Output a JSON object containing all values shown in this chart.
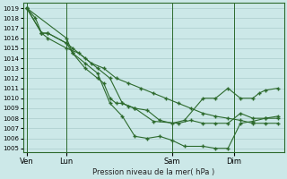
{
  "bg_color": "#cce8e8",
  "grid_color": "#aacccc",
  "line_color": "#2d6a2d",
  "title": "Pression niveau de la mer( hPa )",
  "yticks": [
    1005,
    1006,
    1007,
    1008,
    1009,
    1010,
    1011,
    1012,
    1013,
    1014,
    1015,
    1016,
    1017,
    1018,
    1019
  ],
  "ylim": [
    1004.6,
    1019.5
  ],
  "xlim": [
    0,
    21
  ],
  "xtick_positions": [
    0.3,
    3.5,
    12.0,
    17.0
  ],
  "xtick_labels": [
    "Ven",
    "Lun",
    "Sam",
    "Dim"
  ],
  "xvline_positions": [
    0.3,
    3.5,
    12.0,
    17.0
  ],
  "series1_x": [
    0.3,
    1.0,
    1.5,
    2.0,
    3.5,
    4.5,
    5.5,
    6.5,
    7.5,
    8.5,
    9.5,
    10.5,
    11.5,
    12.5,
    13.5,
    14.5,
    15.5,
    16.5,
    17.5,
    18.5,
    19.5,
    20.5
  ],
  "series1_y": [
    1019.0,
    1018.0,
    1016.5,
    1016.0,
    1015.0,
    1014.5,
    1013.5,
    1013.0,
    1012.0,
    1011.5,
    1011.0,
    1010.5,
    1010.0,
    1009.5,
    1009.0,
    1008.5,
    1008.2,
    1008.0,
    1007.8,
    1007.5,
    1007.5,
    1007.5
  ],
  "series2_x": [
    0.3,
    1.5,
    2.0,
    3.5,
    4.0,
    5.0,
    6.0,
    7.0,
    8.0,
    9.0,
    10.5,
    12.5,
    13.5,
    14.5,
    15.5,
    16.5,
    17.5,
    18.5,
    19.5,
    20.5
  ],
  "series2_y": [
    1019.0,
    1016.5,
    1016.5,
    1015.5,
    1015.0,
    1014.0,
    1013.0,
    1012.0,
    1009.5,
    1009.0,
    1007.7,
    1007.5,
    1007.8,
    1007.5,
    1007.5,
    1007.5,
    1008.5,
    1008.0,
    1008.0,
    1008.2
  ],
  "series3_x": [
    0.3,
    1.5,
    2.0,
    3.5,
    4.0,
    5.0,
    6.0,
    7.0,
    8.0,
    9.0,
    10.0,
    11.0,
    12.0,
    13.0,
    14.5,
    15.5,
    16.5,
    17.5,
    18.5,
    19.5,
    20.5
  ],
  "series3_y": [
    1019.0,
    1016.5,
    1016.5,
    1015.5,
    1014.5,
    1013.5,
    1012.5,
    1009.5,
    1008.2,
    1006.2,
    1006.0,
    1006.2,
    1005.8,
    1005.2,
    1005.2,
    1005.0,
    1005.0,
    1007.5,
    1007.7,
    1008.0,
    1008.0
  ],
  "series4_x": [
    0.3,
    3.5,
    4.0,
    5.0,
    6.0,
    6.5,
    7.0,
    7.5,
    8.0,
    8.5,
    9.0,
    10.0,
    11.0,
    12.0,
    13.0,
    14.5,
    15.5,
    16.5,
    17.5,
    18.5,
    19.0,
    19.5,
    20.5
  ],
  "series4_y": [
    1019.0,
    1016.0,
    1014.5,
    1013.0,
    1012.0,
    1011.5,
    1010.0,
    1009.5,
    1009.5,
    1009.2,
    1009.0,
    1008.8,
    1007.8,
    1007.5,
    1007.8,
    1010.0,
    1010.0,
    1011.0,
    1010.0,
    1010.0,
    1010.5,
    1010.8,
    1011.0
  ]
}
